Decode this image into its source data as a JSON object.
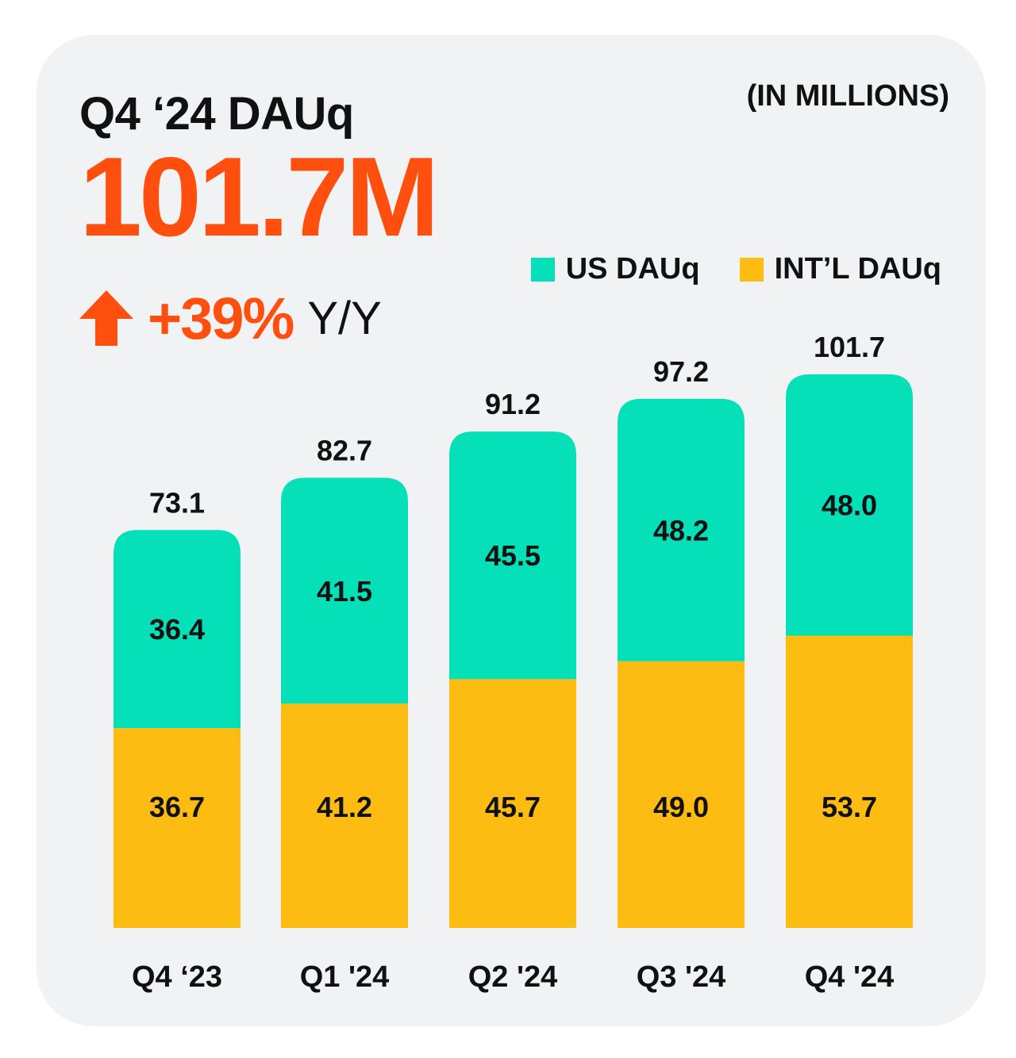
{
  "header": {
    "title": "Q4 ‘24 DAUq",
    "units_note": "(IN MILLIONS)",
    "headline_value": "101.7M",
    "change_value": "+39%",
    "change_suffix": "Y/Y"
  },
  "colors": {
    "us": "#05E0B9",
    "intl": "#FDBC11",
    "accent": "#FF4F0F",
    "text": "#111111",
    "card": "#F1F2F3"
  },
  "chart_data": {
    "type": "bar",
    "stacked": true,
    "title": "Q4 ‘24 DAUq",
    "units": "(IN MILLIONS)",
    "categories": [
      "Q4 ‘23",
      "Q1 '24",
      "Q2 '24",
      "Q3 '24",
      "Q4 '24"
    ],
    "series": [
      {
        "name": "INT’L DAUq",
        "values": [
          36.7,
          41.2,
          45.7,
          49.0,
          53.7
        ],
        "labels": [
          "36.7",
          "41.2",
          "45.7",
          "49.0",
          "53.7"
        ]
      },
      {
        "name": "US DAUq",
        "values": [
          36.4,
          41.5,
          45.5,
          48.2,
          48.0
        ],
        "labels": [
          "36.4",
          "41.5",
          "45.5",
          "48.2",
          "48.0"
        ]
      }
    ],
    "totals": [
      73.1,
      82.7,
      91.2,
      97.2,
      101.7
    ],
    "total_labels": [
      "73.1",
      "82.7",
      "91.2",
      "97.2",
      "101.7"
    ],
    "legend_order": [
      "US DAUq",
      "INT’L DAUq"
    ],
    "legend_position": "top-right",
    "ylim": [
      0,
      101.7
    ],
    "grid": false,
    "axes_visible": false
  }
}
